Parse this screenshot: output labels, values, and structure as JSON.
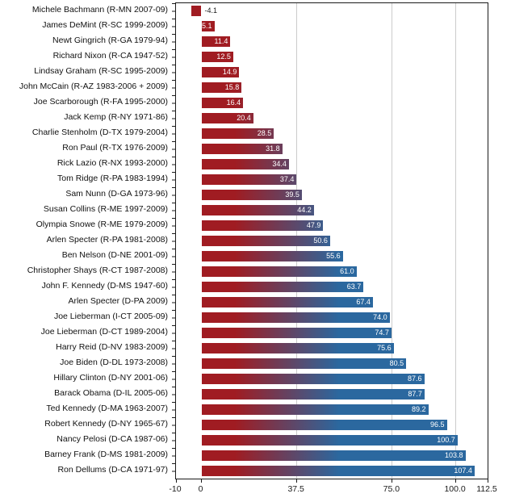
{
  "chart_data": {
    "type": "bar",
    "orientation": "horizontal",
    "title": "",
    "xlabel": "",
    "ylabel": "",
    "categories": [
      "Michele Bachmann (R-MN 2007-09)",
      "James DeMint (R-SC 1999-2009)",
      "Newt Gingrich (R-GA 1979-94)",
      "Richard Nixon (R-CA 1947-52)",
      "Lindsay Graham (R-SC 1995-2009)",
      "John McCain (R-AZ 1983-2006 + 2009)",
      "Joe Scarborough (R-FA 1995-2000)",
      "Jack Kemp (R-NY 1971-86)",
      "Charlie Stenholm (D-TX 1979-2004)",
      "Ron Paul (R-TX 1976-2009)",
      "Rick Lazio (R-NX 1993-2000)",
      "Tom Ridge (R-PA 1983-1994)",
      "Sam Nunn (D-GA 1973-96)",
      "Susan Collins (R-ME 1997-2009)",
      "Olympia Snowe (R-ME 1979-2009)",
      "Arlen Specter (R-PA 1981-2008)",
      "Ben Nelson (D-NE 2001-09)",
      "Christopher Shays (R-CT 1987-2008)",
      "John F. Kennedy (D-MS 1947-60)",
      "Arlen Specter (D-PA 2009)",
      "Joe Lieberman (I-CT 2005-09)",
      "Joe Lieberman (D-CT 1989-2004)",
      "Harry Reid (D-NV 1983-2009)",
      "Joe Biden (D-DL 1973-2008)",
      "Hillary Clinton (D-NY 2001-06)",
      "Barack Obama (D-IL 2005-06)",
      "Ted Kennedy (D-MA 1963-2007)",
      "Robert Kennedy (D-NY 1965-67)",
      "Nancy Pelosi (D-CA 1987-06)",
      "Barney Frank (D-MS 1981-2009)",
      "Ron Dellums (D-CA 1971-97)"
    ],
    "values": [
      -4.1,
      5.1,
      11.4,
      12.5,
      14.9,
      15.8,
      16.4,
      20.4,
      28.5,
      31.8,
      34.4,
      37.4,
      39.5,
      44.2,
      47.9,
      50.6,
      55.6,
      61.0,
      63.7,
      67.4,
      74.0,
      74.7,
      75.6,
      80.5,
      87.6,
      87.7,
      89.2,
      96.5,
      100.7,
      103.8,
      107.4
    ],
    "xlim": [
      -10,
      112.5
    ],
    "xticks": [
      {
        "label": "-10",
        "value": -10
      },
      {
        "label": "0",
        "value": 0
      },
      {
        "label": "37.5",
        "value": 37.5
      },
      {
        "label": "75.0",
        "value": 75
      },
      {
        "label": "100.0",
        "value": 100
      },
      {
        "label": "112.5",
        "value": 112.5
      }
    ],
    "gridlines": [
      37.5,
      75,
      100
    ],
    "grid": true,
    "legend": false,
    "colors": {
      "bar_red": "#A01C22",
      "bar_blue": "#2B689F",
      "gridline": "#CCCCCC",
      "axis": "#1A1A1A",
      "label_inside": "#FFFFFF",
      "label_outside": "#1A1A1A"
    },
    "gradient": {
      "red_until_units": 13,
      "blue_from_units": 54
    }
  }
}
